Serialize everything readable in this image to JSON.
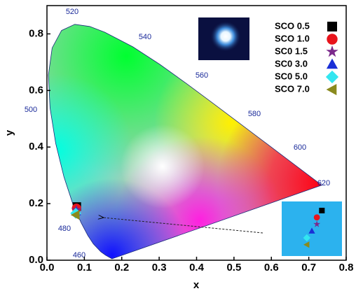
{
  "chart_data": {
    "type": "scatter",
    "x_label": "x",
    "y_label": "y",
    "xlim": [
      0,
      0.8
    ],
    "ylim": [
      0,
      0.9
    ],
    "xticks": [
      {
        "value": 0,
        "label": "0.0"
      },
      {
        "value": 0.1,
        "label": "0.1"
      },
      {
        "value": 0.2,
        "label": "0.2"
      },
      {
        "value": 0.3,
        "label": "0.3"
      },
      {
        "value": 0.4,
        "label": "0.4"
      },
      {
        "value": 0.5,
        "label": "0.5"
      },
      {
        "value": 0.6,
        "label": "0.6"
      },
      {
        "value": 0.7,
        "label": "0.7"
      },
      {
        "value": 0.8,
        "label": "0.8"
      }
    ],
    "yticks": [
      {
        "value": 0,
        "label": "0.0"
      },
      {
        "value": 0.2,
        "label": "0.2"
      },
      {
        "value": 0.4,
        "label": "0.4"
      },
      {
        "value": 0.6,
        "label": "0.6"
      },
      {
        "value": 0.8,
        "label": "0.8"
      }
    ],
    "wavelength_labels": [
      460,
      480,
      500,
      520,
      540,
      560,
      580,
      600,
      620
    ],
    "legend": "upper right",
    "series": [
      {
        "name": "SCO 0.5",
        "color": "#000000",
        "marker": "square",
        "x": [
          0.08
        ],
        "y": [
          0.19
        ]
      },
      {
        "name": "SCO 1.0",
        "color": "#e8141c",
        "marker": "circle",
        "x": [
          0.079
        ],
        "y": [
          0.184
        ]
      },
      {
        "name": "SC0 1.5",
        "color": "#7b2a8c",
        "marker": "star",
        "x": [
          0.079
        ],
        "y": [
          0.178
        ]
      },
      {
        "name": "SC0 3.0",
        "color": "#1a2fd6",
        "marker": "triangle",
        "x": [
          0.078
        ],
        "y": [
          0.172
        ]
      },
      {
        "name": "SC0 5.0",
        "color": "#33e6f0",
        "marker": "diamond",
        "x": [
          0.077
        ],
        "y": [
          0.166
        ]
      },
      {
        "name": "SCO 7.0",
        "color": "#8a8a1e",
        "marker": "triangle-left",
        "x": [
          0.077
        ],
        "y": [
          0.16
        ]
      }
    ]
  }
}
